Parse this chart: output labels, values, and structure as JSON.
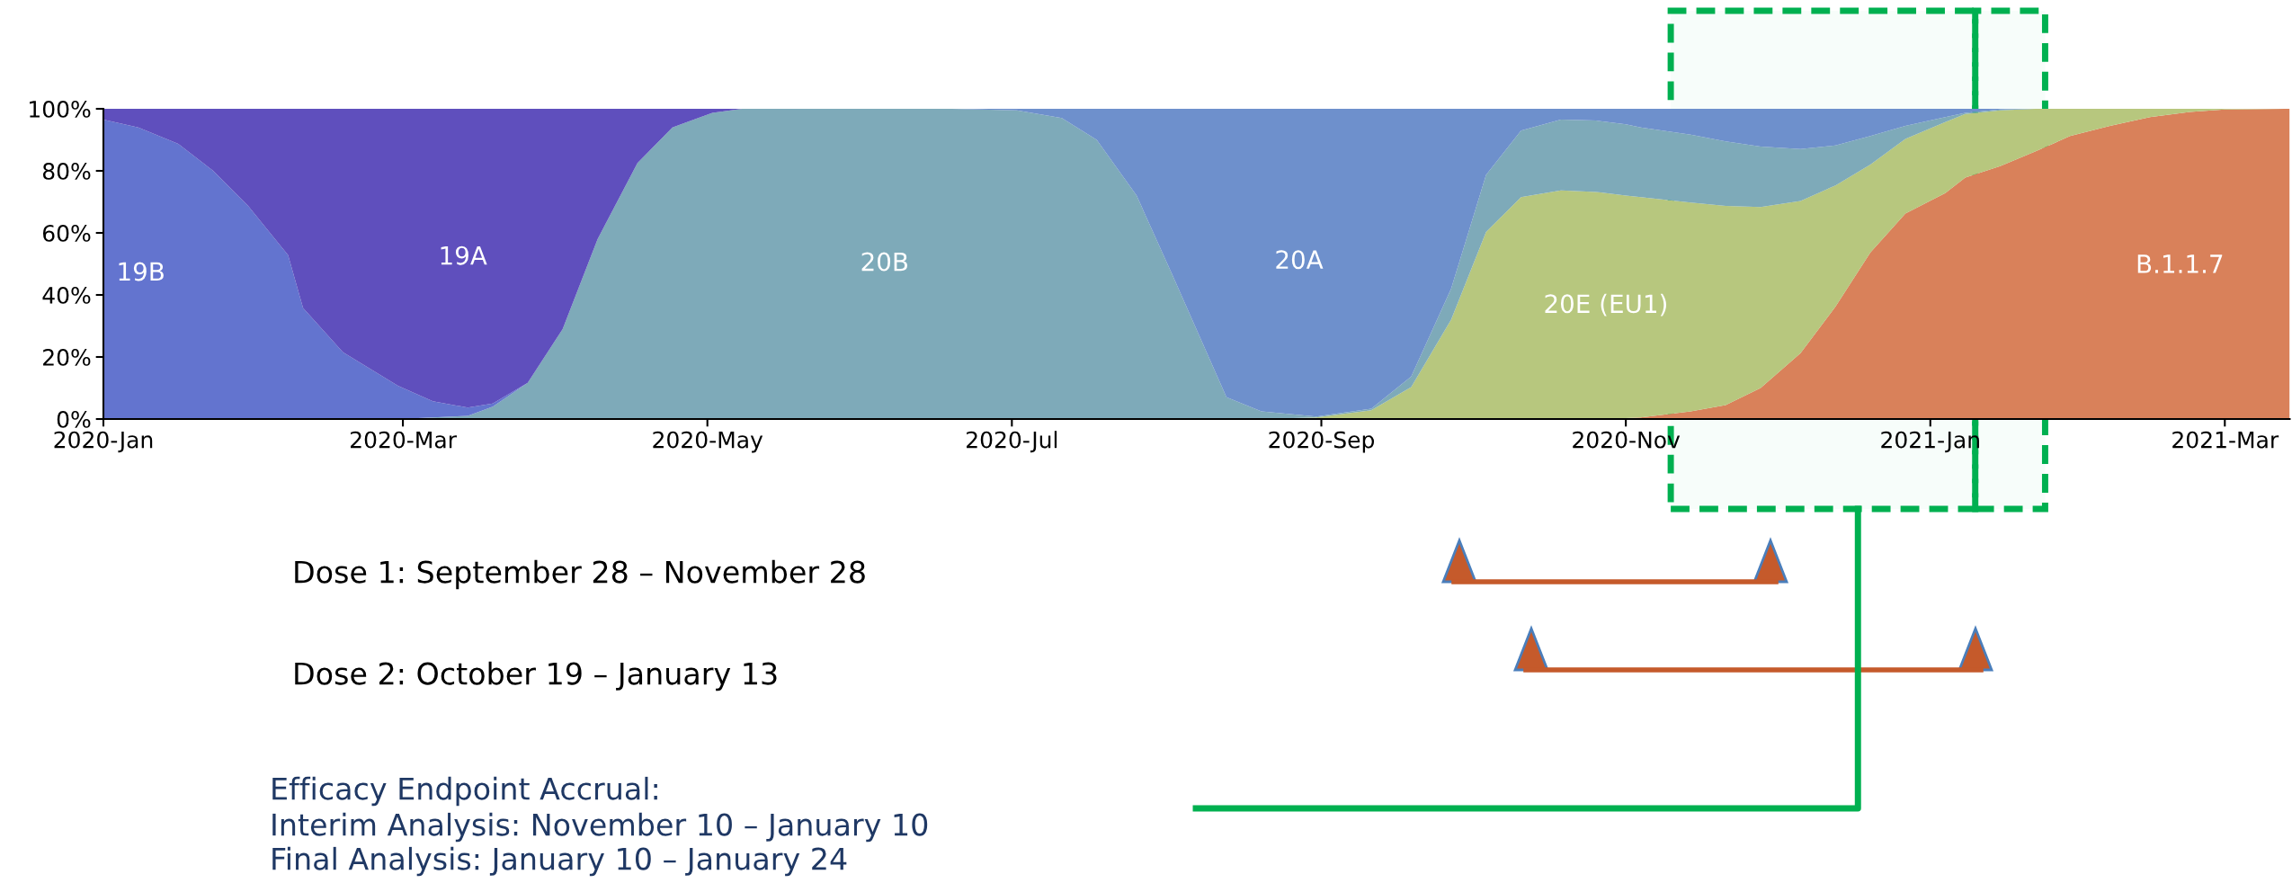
{
  "chart_data": {
    "type": "area",
    "stacked": true,
    "legend": false,
    "grid": false,
    "x": [
      "2020-01-01",
      "2020-01-08",
      "2020-01-16",
      "2020-01-23",
      "2020-01-30",
      "2020-02-07",
      "2020-02-10",
      "2020-02-18",
      "2020-02-29",
      "2020-03-07",
      "2020-03-14",
      "2020-03-19",
      "2020-03-26",
      "2020-04-02",
      "2020-04-09",
      "2020-04-17",
      "2020-04-24",
      "2020-05-02",
      "2020-05-08",
      "2020-05-30",
      "2020-06-19",
      "2020-07-02",
      "2020-07-11",
      "2020-07-18",
      "2020-07-26",
      "2020-08-02",
      "2020-08-13",
      "2020-08-20",
      "2020-08-31",
      "2020-09-11",
      "2020-09-19",
      "2020-09-27",
      "2020-10-04",
      "2020-10-11",
      "2020-10-19",
      "2020-10-26",
      "2020-11-01",
      "2020-11-04",
      "2020-11-14",
      "2020-11-21",
      "2020-11-28",
      "2020-12-06",
      "2020-12-13",
      "2020-12-20",
      "2020-12-27",
      "2021-01-04",
      "2021-01-08",
      "2021-01-15",
      "2021-01-22",
      "2021-01-29",
      "2021-02-06",
      "2021-02-14",
      "2021-02-22",
      "2021-03-01",
      "2021-03-14"
    ],
    "series": [
      {
        "name": "B.1.1.7",
        "color": "#d9815a",
        "values": [
          null,
          null,
          null,
          null,
          null,
          null,
          null,
          null,
          null,
          null,
          null,
          null,
          null,
          null,
          null,
          null,
          null,
          null,
          null,
          null,
          null,
          null,
          null,
          null,
          null,
          null,
          null,
          null,
          null,
          null,
          null,
          null,
          null,
          null,
          null,
          0,
          0.3,
          0.5,
          2.5,
          4.5,
          10,
          21.2,
          36.2,
          53.7,
          66.2,
          72.8,
          77.8,
          81.5,
          86.2,
          91.2,
          94.5,
          97.3,
          99,
          99.8,
          100
        ]
      },
      {
        "name": "20E (EU1)",
        "color": "#b7c77e",
        "values": [
          null,
          null,
          null,
          null,
          null,
          null,
          null,
          null,
          null,
          null,
          null,
          null,
          null,
          null,
          null,
          null,
          null,
          null,
          null,
          null,
          null,
          null,
          null,
          null,
          null,
          null,
          null,
          0,
          0.5,
          2.8,
          10.3,
          32,
          60.3,
          71.5,
          73.7,
          73.2,
          71.7,
          71,
          67.3,
          64.2,
          58.3,
          49.1,
          39.1,
          28.3,
          24.1,
          22.9,
          20.5,
          18,
          13.8,
          8.8,
          5.5,
          2.7,
          1,
          0.2,
          0
        ]
      },
      {
        "name": "20B",
        "color": "#7eaab9",
        "values": [
          null,
          null,
          null,
          null,
          null,
          null,
          null,
          null,
          0,
          0.5,
          1,
          4,
          11.7,
          29,
          58,
          82.5,
          94,
          98.7,
          100,
          100,
          100,
          99.5,
          97,
          90,
          72,
          47,
          7,
          2.5,
          0.3,
          0.5,
          3.4,
          10,
          18.4,
          21.5,
          22.8,
          23,
          23,
          22.5,
          21.9,
          20.8,
          19.5,
          16.7,
          12.9,
          9.2,
          4.2,
          1.6,
          0.4,
          0.3,
          0,
          null,
          null,
          null,
          null,
          null,
          null
        ]
      },
      {
        "name": "19B",
        "color": "#6374cf",
        "values": [
          96.5,
          94,
          88.7,
          80,
          68.7,
          52.8,
          35.8,
          21.5,
          10.7,
          5.2,
          2.7,
          1,
          0,
          null,
          null,
          null,
          null,
          null,
          null,
          null,
          null,
          null,
          null,
          null,
          null,
          null,
          null,
          null,
          null,
          null,
          null,
          null,
          null,
          null,
          null,
          null,
          null,
          null,
          null,
          null,
          null,
          null,
          null,
          null,
          null,
          null,
          null,
          null,
          null,
          null,
          null,
          null,
          null,
          null,
          null
        ]
      },
      {
        "name": "19A",
        "color": "#5f4fbd",
        "values": [
          3.5,
          6,
          11.3,
          20,
          31.3,
          47.2,
          64.2,
          78.5,
          89.3,
          94.3,
          96.3,
          95,
          88.3,
          71,
          42,
          17.5,
          6,
          1.3,
          0,
          null,
          null,
          null,
          null,
          null,
          null,
          null,
          null,
          null,
          null,
          null,
          null,
          null,
          null,
          null,
          null,
          null,
          null,
          null,
          null,
          null,
          null,
          null,
          null,
          null,
          null,
          null,
          null,
          null,
          null,
          null,
          null,
          null,
          null,
          null,
          null
        ]
      },
      {
        "name": "20A",
        "color": "#6e90cc",
        "values": [
          null,
          null,
          null,
          null,
          null,
          null,
          null,
          null,
          null,
          null,
          null,
          null,
          null,
          null,
          null,
          null,
          null,
          null,
          null,
          null,
          0,
          0.5,
          3,
          10,
          28,
          53,
          93,
          97.5,
          99.2,
          96.7,
          86.3,
          58,
          21.3,
          7,
          3.5,
          3.8,
          5,
          6,
          8.3,
          10.5,
          12.2,
          13,
          11.8,
          8.8,
          5.5,
          2.7,
          1.3,
          0.2,
          0,
          null,
          null,
          null,
          null,
          null,
          null
        ]
      }
    ],
    "xlim": [
      "2020-01-01",
      "2021-03-14"
    ],
    "xticks": [
      {
        "value": "2020-01-01",
        "label": "2020-Jan"
      },
      {
        "value": "2020-03-01",
        "label": "2020-Mar"
      },
      {
        "value": "2020-05-01",
        "label": "2020-May"
      },
      {
        "value": "2020-07-01",
        "label": "2020-Jul"
      },
      {
        "value": "2020-09-01",
        "label": "2020-Sep"
      },
      {
        "value": "2020-11-01",
        "label": "2020-Nov"
      },
      {
        "value": "2021-01-01",
        "label": "2021-Jan"
      },
      {
        "value": "2021-03-01",
        "label": "2021-Mar"
      }
    ],
    "ylim": [
      0,
      100
    ],
    "yticks": [
      {
        "value": 0,
        "label": "0%"
      },
      {
        "value": 20,
        "label": "20%"
      },
      {
        "value": 40,
        "label": "40%"
      },
      {
        "value": 60,
        "label": "60%"
      },
      {
        "value": 80,
        "label": "80%"
      },
      {
        "value": 100,
        "label": "100%"
      }
    ],
    "bands": [
      {
        "axis": "x",
        "from": "2020-11-10",
        "to": "2021-01-10",
        "color": "#00b050"
      },
      {
        "axis": "x",
        "from": "2021-01-10",
        "to": "2021-01-24",
        "color": "#00b050"
      }
    ],
    "annotations": [
      "Dose 1: September 28 – November 28",
      "Dose 2: October 19 – January 13",
      "Efficacy Endpoint Accrual:",
      "Interim Analysis: November 10 – January 10",
      "Final Analysis: January 10 – January 24"
    ]
  }
}
